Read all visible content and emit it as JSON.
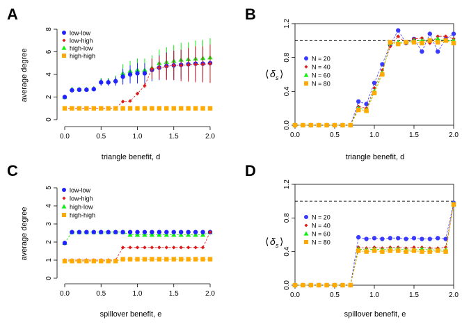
{
  "colors": {
    "low-low": "#2222ff",
    "low-high": "#dd1a1a",
    "high-low": "#11ee11",
    "high-high": "#ffaa00",
    "N = 20": "#3a3aff",
    "N = 40": "#dd1a1a",
    "N = 60": "#11ee11",
    "N = 80": "#ffaa00"
  },
  "chart_data": [
    {
      "panel": "A",
      "type": "scatter",
      "xlabel": "triangle benefit,  d",
      "ylabel": "average degree",
      "xlim": [
        0,
        2
      ],
      "ylim": [
        0,
        8
      ],
      "xticks": [
        "0.0",
        "0.5",
        "1.0",
        "1.5",
        "2.0"
      ],
      "xtick_values": [
        0,
        0.5,
        1,
        1.5,
        2
      ],
      "yticks": [
        "0",
        "2",
        "4",
        "6",
        "8"
      ],
      "ytick_values": [
        0,
        2,
        4,
        6,
        8
      ],
      "frame": false,
      "legend": "top-left",
      "legend_labels": [
        "low-low",
        "low-high",
        "high-low",
        "high-high"
      ],
      "x": [
        0,
        0.1,
        0.2,
        0.3,
        0.4,
        0.5,
        0.6,
        0.7,
        0.8,
        0.9,
        1.0,
        1.1,
        1.2,
        1.3,
        1.4,
        1.5,
        1.6,
        1.7,
        1.8,
        1.9,
        2.0
      ],
      "series": [
        {
          "name": "high-low",
          "marker": "triangle",
          "line": false,
          "values": [
            2.0,
            2.7,
            2.7,
            2.7,
            2.75,
            3.4,
            3.4,
            3.5,
            4.1,
            4.3,
            4.4,
            4.4,
            4.6,
            5.0,
            5.1,
            5.2,
            5.3,
            5.35,
            5.4,
            5.45,
            5.5
          ],
          "err": [
            0.1,
            0.15,
            0.15,
            0.15,
            0.2,
            0.3,
            0.3,
            0.4,
            0.8,
            0.9,
            1.0,
            1.0,
            1.1,
            1.2,
            1.3,
            1.4,
            1.5,
            1.5,
            1.6,
            1.6,
            1.7
          ]
        },
        {
          "name": "low-low",
          "marker": "circle",
          "line": false,
          "values": [
            2.0,
            2.6,
            2.65,
            2.65,
            2.7,
            3.3,
            3.3,
            3.4,
            3.8,
            4.0,
            4.1,
            4.1,
            4.4,
            4.6,
            4.75,
            4.8,
            4.85,
            4.9,
            4.95,
            4.95,
            5.0
          ],
          "err": [
            0.1,
            0.15,
            0.15,
            0.15,
            0.2,
            0.3,
            0.3,
            0.4,
            0.7,
            0.8,
            0.9,
            0.9,
            1.0,
            1.1,
            1.2,
            1.3,
            1.3,
            1.4,
            1.5,
            1.5,
            1.6
          ]
        },
        {
          "name": "low-high",
          "marker": "diamond",
          "line": true,
          "values": [
            1.0,
            1.0,
            1.0,
            1.0,
            1.0,
            1.0,
            1.0,
            1.0,
            1.6,
            1.65,
            2.3,
            3.0,
            4.5,
            4.6,
            4.7,
            4.8,
            4.8,
            4.85,
            4.9,
            4.9,
            4.95
          ],
          "err": [
            0,
            0,
            0,
            0,
            0,
            0,
            0,
            0,
            0.05,
            0.05,
            0.1,
            0.2,
            0.9,
            1.0,
            1.2,
            1.3,
            1.4,
            1.5,
            1.6,
            1.6,
            1.7
          ]
        },
        {
          "name": "high-high",
          "marker": "square",
          "line": false,
          "values": [
            1.0,
            1.0,
            1.0,
            1.0,
            1.0,
            1.0,
            1.0,
            1.0,
            1.0,
            1.0,
            1.0,
            1.0,
            1.0,
            1.0,
            1.0,
            1.0,
            1.0,
            1.0,
            1.0,
            1.0,
            1.0
          ]
        }
      ]
    },
    {
      "panel": "B",
      "type": "line",
      "xlabel": "triangle benefit,  d",
      "ylabel": "⟨δs⟩",
      "xlim": [
        0,
        2
      ],
      "ylim": [
        0,
        1.2
      ],
      "xticks": [
        "0.0",
        "0.5",
        "1.0",
        "1.5",
        "2.0"
      ],
      "xtick_values": [
        0,
        0.5,
        1,
        1.5,
        2
      ],
      "yticks": [
        "0.0",
        "0.4",
        "0.8",
        "1.2"
      ],
      "ytick_values": [
        0,
        0.4,
        0.8,
        1.2
      ],
      "frame": true,
      "reference_line": 1.0,
      "legend": "left",
      "legend_labels": [
        "N = 20",
        "N = 40",
        "N = 60",
        "N = 80"
      ],
      "x": [
        0,
        0.1,
        0.2,
        0.3,
        0.4,
        0.5,
        0.6,
        0.7,
        0.8,
        0.9,
        1.0,
        1.1,
        1.2,
        1.3,
        1.4,
        1.5,
        1.6,
        1.7,
        1.8,
        1.9,
        2.0
      ],
      "series": [
        {
          "name": "N = 20",
          "marker": "circle",
          "values": [
            0,
            0,
            0,
            0,
            0,
            0,
            0,
            0,
            0.28,
            0.25,
            0.5,
            0.72,
            0.95,
            1.12,
            0.97,
            1.02,
            0.87,
            1.08,
            0.87,
            1.02,
            1.08
          ]
        },
        {
          "name": "N = 40",
          "marker": "diamond",
          "values": [
            0,
            0,
            0,
            0,
            0,
            0,
            0,
            0,
            0.22,
            0.2,
            0.44,
            0.65,
            0.93,
            1.05,
            0.97,
            1.02,
            1.03,
            0.97,
            1.05,
            1.05,
            1.02
          ]
        },
        {
          "name": "N = 60",
          "marker": "triangle",
          "values": [
            0,
            0,
            0,
            0,
            0,
            0,
            0,
            0,
            0.2,
            0.18,
            0.4,
            0.62,
            0.97,
            0.98,
            0.98,
            1.0,
            1.0,
            1.0,
            1.02,
            1.0,
            1.0
          ]
        },
        {
          "name": "N = 80",
          "marker": "square",
          "values": [
            0,
            0,
            0,
            0,
            0,
            0,
            0,
            0,
            0.18,
            0.17,
            0.38,
            0.6,
            0.98,
            0.96,
            0.98,
            0.98,
            0.97,
            1.0,
            0.98,
            1.0,
            0.97
          ]
        }
      ]
    },
    {
      "panel": "C",
      "type": "scatter",
      "xlabel": "spillover benefit,  e",
      "ylabel": "average degree",
      "xlim": [
        0,
        2
      ],
      "ylim": [
        0,
        5
      ],
      "xticks": [
        "0.0",
        "0.5",
        "1.0",
        "1.5",
        "2.0"
      ],
      "xtick_values": [
        0,
        0.5,
        1,
        1.5,
        2
      ],
      "yticks": [
        "0",
        "1",
        "2",
        "3",
        "4",
        "5"
      ],
      "ytick_values": [
        0,
        1,
        2,
        3,
        4,
        5
      ],
      "frame": false,
      "legend": "top-left",
      "legend_labels": [
        "low-low",
        "low-high",
        "high-low",
        "high-high"
      ],
      "x": [
        0,
        0.1,
        0.2,
        0.3,
        0.4,
        0.5,
        0.6,
        0.7,
        0.8,
        0.9,
        1.0,
        1.1,
        1.2,
        1.3,
        1.4,
        1.5,
        1.6,
        1.7,
        1.8,
        1.9,
        2.0
      ],
      "series": [
        {
          "name": "high-low",
          "marker": "triangle",
          "line": true,
          "values": [
            1.95,
            2.55,
            2.55,
            2.55,
            2.55,
            2.55,
            2.55,
            2.55,
            2.55,
            2.4,
            2.4,
            2.4,
            2.4,
            2.4,
            2.4,
            2.4,
            2.4,
            2.4,
            2.4,
            2.4,
            2.55
          ]
        },
        {
          "name": "low-low",
          "marker": "circle",
          "line": false,
          "values": [
            1.95,
            2.55,
            2.55,
            2.55,
            2.55,
            2.55,
            2.55,
            2.55,
            2.55,
            2.55,
            2.55,
            2.55,
            2.55,
            2.55,
            2.55,
            2.55,
            2.55,
            2.55,
            2.55,
            2.55,
            2.55
          ]
        },
        {
          "name": "low-high",
          "marker": "diamond",
          "line": true,
          "values": [
            1.0,
            1.0,
            1.0,
            1.0,
            1.0,
            1.0,
            1.0,
            1.0,
            1.7,
            1.7,
            1.7,
            1.7,
            1.7,
            1.7,
            1.7,
            1.7,
            1.7,
            1.7,
            1.7,
            1.7,
            2.55
          ]
        },
        {
          "name": "high-high",
          "marker": "square",
          "line": true,
          "values": [
            0.95,
            0.95,
            0.95,
            0.95,
            0.95,
            0.95,
            0.95,
            0.95,
            1.05,
            1.05,
            1.05,
            1.05,
            1.05,
            1.05,
            1.05,
            1.05,
            1.05,
            1.05,
            1.05,
            1.05,
            1.05
          ]
        }
      ]
    },
    {
      "panel": "D",
      "type": "line",
      "xlabel": "spillover benefit,  e",
      "ylabel": "⟨δs⟩",
      "xlim": [
        0,
        2
      ],
      "ylim": [
        0,
        1.2
      ],
      "xticks": [
        "0.0",
        "0.5",
        "1.0",
        "1.5",
        "2.0"
      ],
      "xtick_values": [
        0,
        0.5,
        1,
        1.5,
        2
      ],
      "yticks": [
        "0.0",
        "0.4",
        "0.8",
        "1.2"
      ],
      "ytick_values": [
        0,
        0.4,
        0.8,
        1.2
      ],
      "frame": true,
      "reference_line": 1.0,
      "legend": "left",
      "legend_labels": [
        "N = 20",
        "N = 40",
        "N = 60",
        "N = 80"
      ],
      "x": [
        0,
        0.1,
        0.2,
        0.3,
        0.4,
        0.5,
        0.6,
        0.7,
        0.8,
        0.9,
        1.0,
        1.1,
        1.2,
        1.3,
        1.4,
        1.5,
        1.6,
        1.7,
        1.8,
        1.9,
        2.0
      ],
      "series": [
        {
          "name": "N = 20",
          "marker": "circle",
          "values": [
            0,
            0,
            0,
            0,
            0,
            0,
            0,
            0,
            0.57,
            0.55,
            0.56,
            0.55,
            0.56,
            0.56,
            0.55,
            0.56,
            0.55,
            0.55,
            0.56,
            0.55,
            0.98
          ]
        },
        {
          "name": "N = 40",
          "marker": "diamond",
          "values": [
            0,
            0,
            0,
            0,
            0,
            0,
            0,
            0,
            0.45,
            0.44,
            0.45,
            0.44,
            0.45,
            0.45,
            0.44,
            0.45,
            0.45,
            0.44,
            0.44,
            0.45,
            0.97
          ]
        },
        {
          "name": "N = 60",
          "marker": "triangle",
          "values": [
            0,
            0,
            0,
            0,
            0,
            0,
            0,
            0,
            0.43,
            0.42,
            0.43,
            0.42,
            0.43,
            0.43,
            0.42,
            0.42,
            0.43,
            0.42,
            0.42,
            0.42,
            0.97
          ]
        },
        {
          "name": "N = 80",
          "marker": "square",
          "values": [
            0,
            0,
            0,
            0,
            0,
            0,
            0,
            0,
            0.41,
            0.4,
            0.41,
            0.4,
            0.41,
            0.41,
            0.4,
            0.41,
            0.4,
            0.4,
            0.41,
            0.4,
            0.96
          ]
        }
      ]
    }
  ]
}
